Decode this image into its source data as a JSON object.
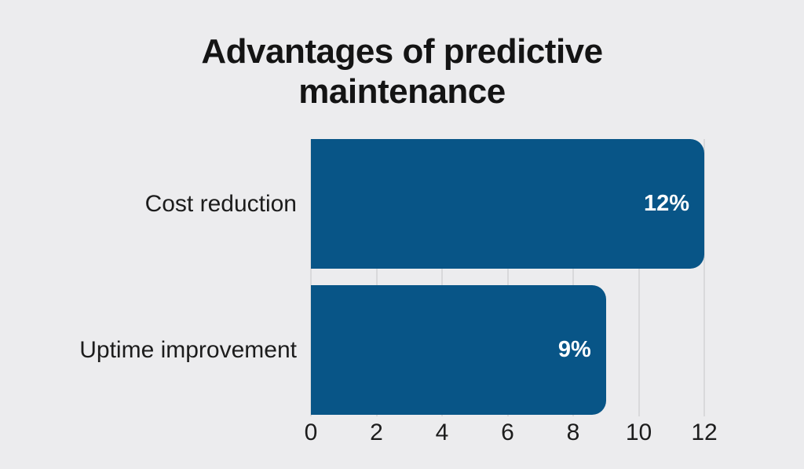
{
  "page": {
    "background_color": "#ececee"
  },
  "chart_data": {
    "type": "bar",
    "orientation": "horizontal",
    "title": "Advantages of predictive maintenance",
    "categories": [
      "Cost reduction",
      "Uptime improvement"
    ],
    "values": [
      12,
      9
    ],
    "value_labels": [
      "12%",
      "9%"
    ],
    "x_ticks": [
      "0",
      "2",
      "4",
      "6",
      "8",
      "10",
      "12"
    ],
    "x_tick_values": [
      0,
      2,
      4,
      6,
      8,
      10,
      12
    ],
    "xlim": [
      0,
      12
    ],
    "xlabel": "",
    "ylabel": "",
    "legend": "none",
    "grid": "vertical",
    "bar_color": "#085587",
    "grid_color": "#d9d9db",
    "value_label_color": "#ffffff",
    "axis_text_color": "#1c1c1c",
    "title_color": "#141414"
  }
}
